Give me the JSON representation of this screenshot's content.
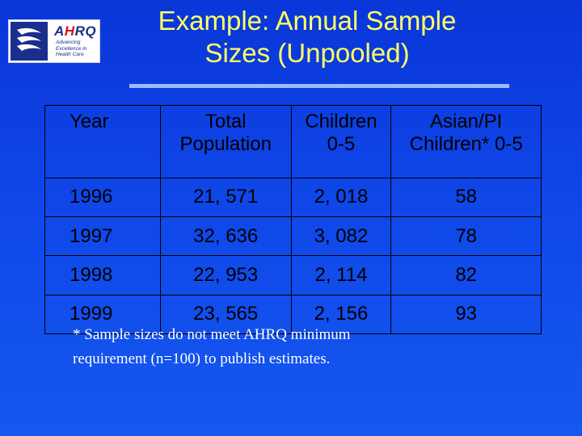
{
  "slide": {
    "title_line1": "Example:  Annual Sample",
    "title_line2": "Sizes (Unpooled)"
  },
  "logo": {
    "name_prefix": "A",
    "name_accent": "H",
    "name_suffix": "RQ",
    "tagline_line1": "Advancing",
    "tagline_line2": "Excellence in",
    "tagline_line3": "Health Care",
    "icon": "hhs-eagle-icon"
  },
  "table": {
    "headers": [
      {
        "line1": "Year",
        "line2": ""
      },
      {
        "line1": "Total",
        "line2": "Population"
      },
      {
        "line1": "Children",
        "line2": "0-5"
      },
      {
        "line1": "Asian/PI",
        "line2": "Children* 0-5"
      }
    ],
    "rows": [
      [
        "1996",
        "21, 571",
        "2, 018",
        "58"
      ],
      [
        "1997",
        "32, 636",
        "3, 082",
        "78"
      ],
      [
        "1998",
        "22, 953",
        "2, 114",
        "82"
      ],
      [
        "1999",
        "23, 565",
        "2, 156",
        "93"
      ]
    ]
  },
  "footnote": {
    "line1": "* Sample sizes do not meet AHRQ minimum",
    "line2": "requirement (n=100) to publish estimates."
  },
  "colors": {
    "background": "#0f46e8",
    "title": "#ffff66",
    "table_text": "#000000",
    "footnote": "#ffffff"
  }
}
